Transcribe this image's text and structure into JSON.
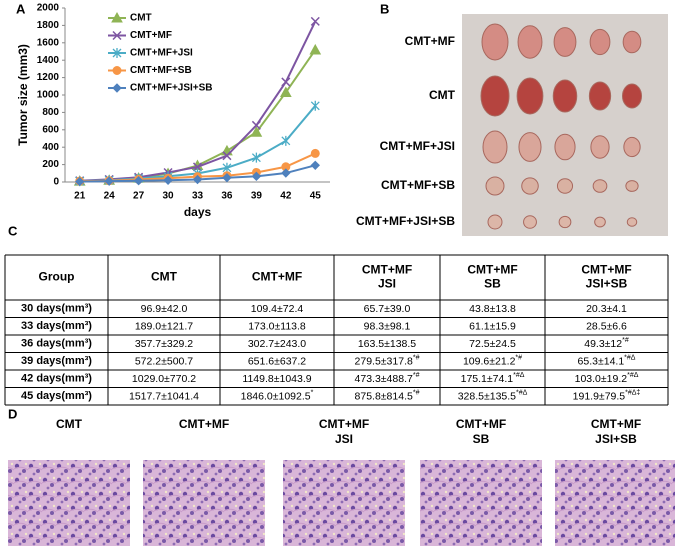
{
  "chart_data": {
    "type": "line",
    "ylabel": "Tumor size (mm3)",
    "xlabel": "days",
    "categories": [
      "21",
      "24",
      "27",
      "30",
      "33",
      "36",
      "39",
      "42",
      "45"
    ],
    "ylim": [
      0,
      2000
    ],
    "yticks": [
      0,
      200,
      400,
      600,
      800,
      1000,
      1200,
      1400,
      1600,
      1800,
      2000
    ],
    "series": [
      {
        "name": "CMT",
        "color": "#8fb455",
        "marker": "triangle",
        "values": [
          10,
          20,
          45,
          96.9,
          189.0,
          357.7,
          572.2,
          1029.0,
          1517.7
        ]
      },
      {
        "name": "CMT+MF",
        "color": "#7d55a2",
        "marker": "x",
        "values": [
          15,
          30,
          55,
          109.4,
          173.0,
          302.7,
          651.6,
          1149.8,
          1846.0
        ]
      },
      {
        "name": "CMT+MF+JSI",
        "color": "#4bacc6",
        "marker": "star",
        "values": [
          10,
          20,
          40,
          65.7,
          98.3,
          163.5,
          279.5,
          473.3,
          875.8
        ]
      },
      {
        "name": "CMT+MF+SB",
        "color": "#f79646",
        "marker": "circle",
        "values": [
          10,
          15,
          30,
          43.8,
          61.1,
          72.5,
          109.6,
          175.1,
          328.5
        ]
      },
      {
        "name": "CMT+MF+JSI+SB",
        "color": "#4f81bd",
        "marker": "diamond",
        "values": [
          5,
          10,
          15,
          20.3,
          28.5,
          49.3,
          65.3,
          103.0,
          191.9
        ]
      }
    ]
  },
  "panel_labels": [
    "A",
    "B",
    "C",
    "D"
  ],
  "photo_labels": [
    "CMT+MF",
    "CMT",
    "CMT+MF+JSI",
    "CMT+MF+SB",
    "CMT+MF+JSI+SB"
  ],
  "table": {
    "columns": [
      [
        "Group"
      ],
      [
        "CMT"
      ],
      [
        "CMT+MF"
      ],
      [
        "CMT+MF",
        "JSI"
      ],
      [
        "CMT+MF",
        "SB"
      ],
      [
        "CMT+MF",
        "JSI+SB"
      ]
    ],
    "rows": [
      {
        "label": "30 days(mm³)",
        "cells": [
          {
            "value": "96.9±42.0"
          },
          {
            "value": "109.4±72.4"
          },
          {
            "value": "65.7±39.0"
          },
          {
            "value": "43.8±13.8"
          },
          {
            "value": "20.3±4.1"
          }
        ]
      },
      {
        "label": "33 days(mm³)",
        "cells": [
          {
            "value": "189.0±121.7"
          },
          {
            "value": "173.0±113.8"
          },
          {
            "value": "98.3±98.1"
          },
          {
            "value": "61.1±15.9"
          },
          {
            "value": "28.5±6.6"
          }
        ]
      },
      {
        "label": "36 days(mm³)",
        "cells": [
          {
            "value": "357.7±329.2"
          },
          {
            "value": "302.7±243.0"
          },
          {
            "value": "163.5±138.5"
          },
          {
            "value": "72.5±24.5"
          },
          {
            "value": "49.3±12",
            "mark": "*#"
          }
        ]
      },
      {
        "label": "39 days(mm³)",
        "cells": [
          {
            "value": "572.2±500.7"
          },
          {
            "value": "651.6±637.2"
          },
          {
            "value": "279.5±317.8",
            "mark": "*#"
          },
          {
            "value": "109.6±21.2",
            "mark": "*#"
          },
          {
            "value": "65.3±14.1",
            "mark": "*#Δ"
          }
        ]
      },
      {
        "label": "42 days(mm³)",
        "cells": [
          {
            "value": "1029.0±770.2"
          },
          {
            "value": "1149.8±1043.9"
          },
          {
            "value": "473.3±488.7",
            "mark": "*#"
          },
          {
            "value": "175.1±74.1",
            "mark": "*#Δ"
          },
          {
            "value": "103.0±19.2",
            "mark": "*#Δ"
          }
        ]
      },
      {
        "label": "45 days(mm³)",
        "cells": [
          {
            "value": "1517.7±1041.4"
          },
          {
            "value": "1846.0±1092.5",
            "mark": "*"
          },
          {
            "value": "875.8±814.5",
            "mark": "*#"
          },
          {
            "value": "328.5±135.5",
            "mark": "*#Δ"
          },
          {
            "value": "191.9±79.5",
            "mark": "*#Δ‡"
          }
        ]
      }
    ]
  },
  "histology_labels": [
    [
      "CMT"
    ],
    [
      "CMT+MF"
    ],
    [
      "CMT+MF",
      "JSI"
    ],
    [
      "CMT+MF",
      "SB"
    ],
    [
      "CMT+MF",
      "JSI+SB"
    ]
  ]
}
